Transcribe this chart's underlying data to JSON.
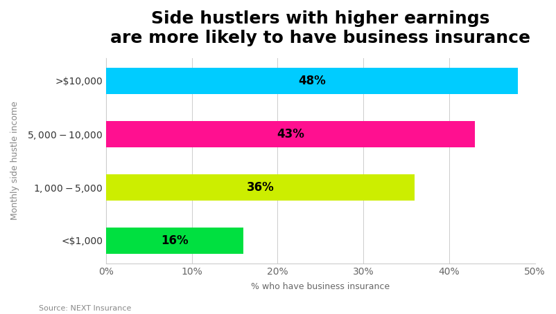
{
  "title": "Side hustlers with higher earnings\nare more likely to have business insurance",
  "categories": [
    "<$1,000",
    "$1,000-$5,000",
    "$5,000-$10,000",
    ">$10,000"
  ],
  "values": [
    16,
    36,
    43,
    48
  ],
  "bar_colors": [
    "#00E040",
    "#CCEE00",
    "#FF1090",
    "#00CCFF"
  ],
  "bar_labels": [
    "16%",
    "36%",
    "43%",
    "48%"
  ],
  "xlabel": "% who have business insurance",
  "ylabel": "Monthly side hustle income",
  "xlim": [
    0,
    50
  ],
  "xticks": [
    0,
    10,
    20,
    30,
    40,
    50
  ],
  "xtick_labels": [
    "0%",
    "10%",
    "20%",
    "30%",
    "40%",
    "50%"
  ],
  "source": "Source: NEXT Insurance",
  "background_color": "#FFFFFF",
  "title_fontsize": 18,
  "label_fontsize": 12,
  "tick_fontsize": 10,
  "ylabel_fontsize": 9,
  "xlabel_fontsize": 9,
  "source_fontsize": 8,
  "bar_height": 0.5
}
